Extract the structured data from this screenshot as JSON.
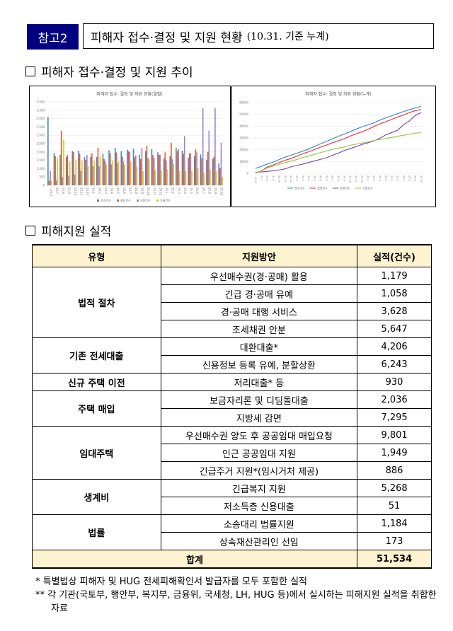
{
  "header": {
    "badge": "참고2",
    "title": "피해자 접수·결정 및 지원 현황",
    "title_sub": "(10.31. 기준 누계)"
  },
  "section1": {
    "title": "피해자 접수·결정 및 지원 추이"
  },
  "section2": {
    "title": "피해지원 실적"
  },
  "chart_data": [
    {
      "type": "bar",
      "title": "피해자 접수· 결정 및 지원 현황(월별)",
      "categories": [
        "~23.6",
        "23.7",
        "23.8",
        "23.9",
        "23.10",
        "23.11",
        "23.12",
        "24.1",
        "24.2",
        "24.3",
        "24.4",
        "24.5",
        "24.6",
        "24.7",
        "24.8",
        "24.9",
        "24.10",
        "24.11",
        "24.12",
        "25.1",
        "25.2",
        "25.3",
        "25.4",
        "25.5",
        "25.6",
        "25.7",
        "25.8",
        "25.9",
        "25.10"
      ],
      "ylim": [
        0,
        5000
      ],
      "yticks": [
        "0",
        "500",
        "1,000",
        "1,500",
        "2,000",
        "2,500",
        "3,000",
        "3,500",
        "4,000",
        "4,500",
        "5,000"
      ],
      "legend_position": "bottom",
      "series": [
        {
          "name": "접수건수",
          "color": "#4a86c8",
          "values": [
            4100,
            1920,
            1830,
            1700,
            2050,
            2080,
            1700,
            1700,
            1700,
            1900,
            2100,
            2250,
            2050,
            2130,
            2200,
            1830,
            2050,
            2170,
            1980,
            1600,
            1750,
            2250,
            2080,
            1650,
            1750,
            1850,
            1530,
            1570,
            1320
          ]
        },
        {
          "name": "결정건수",
          "color": "#f05a28",
          "values": [
            280,
            1750,
            3270,
            1830,
            2000,
            1900,
            1530,
            1920,
            2250,
            1580,
            1920,
            1970,
            1720,
            2050,
            1680,
            1580,
            2370,
            1830,
            1830,
            1970,
            2550,
            2050,
            1900,
            1920,
            2150,
            1630,
            2000,
            1700,
            1030
          ]
        },
        {
          "name": "지원건수",
          "color": "#9d88c0",
          "values": [
            850,
            300,
            480,
            570,
            650,
            870,
            1820,
            1150,
            1150,
            1430,
            1260,
            1330,
            1430,
            2000,
            1800,
            2250,
            1630,
            1640,
            1830,
            1480,
            1580,
            2170,
            2950,
            1920,
            1980,
            4620,
            3270,
            4630,
            2550
          ]
        },
        {
          "name": "가결건수",
          "color": "#e6c619",
          "values": [
            280,
            1640,
            2730,
            1420,
            1530,
            1500,
            1150,
            1480,
            1720,
            1230,
            1480,
            1460,
            1230,
            1420,
            1120,
            840,
            1560,
            920,
            900,
            950,
            1270,
            870,
            860,
            860,
            1030,
            760,
            950,
            860,
            500
          ]
        }
      ]
    },
    {
      "type": "line",
      "title": "피해자 접수· 결정 및 지원 현황(누계)",
      "cumulative_of": "monthly series above",
      "ylim": [
        0,
        60000
      ],
      "yticks": [
        "0",
        "10000",
        "20000",
        "30000",
        "40000",
        "50000",
        "60000"
      ],
      "legend_position": "bottom",
      "series": [
        {
          "name": "접수건수",
          "color": "#2e86d8"
        },
        {
          "name": "결정건수",
          "color": "#ff2020"
        },
        {
          "name": "지원건수",
          "color": "#7a3fb0"
        },
        {
          "name": "가결건수",
          "color": "#8ccc40"
        }
      ]
    }
  ],
  "table": {
    "headers": [
      "유형",
      "지원방안",
      "실적(건수)"
    ],
    "groups": [
      {
        "category": "법적 절차",
        "rows": [
          [
            "우선매수권(경·공매) 활용",
            "1,179"
          ],
          [
            "긴급 경·공매 유예",
            "1,058"
          ],
          [
            "경·공매 대행 서비스",
            "3,628"
          ],
          [
            "조세채권 안분",
            "5,647"
          ]
        ]
      },
      {
        "category": "기존 전세대출",
        "rows": [
          [
            "대환대출*",
            "4,206"
          ],
          [
            "신용정보 등록 유예, 분할상환",
            "6,243"
          ]
        ]
      },
      {
        "category": "신규 주택 이전",
        "rows": [
          [
            "저리대출* 등",
            "930"
          ]
        ]
      },
      {
        "category": "주택 매입",
        "rows": [
          [
            "보금자리론 및 디딤돌대출",
            "2,036"
          ],
          [
            "지방세 감면",
            "7,295"
          ]
        ]
      },
      {
        "category": "임대주택",
        "rows": [
          [
            "우선매수권 양도 후 공공임대 매입요청",
            "9,801"
          ],
          [
            "인근 공공임대 지원",
            "1,949"
          ],
          [
            "긴급주거 지원*(임시거처 제공)",
            "886"
          ]
        ]
      },
      {
        "category": "생계비",
        "rows": [
          [
            "긴급복지 지원",
            "5,268"
          ],
          [
            "저소득층 신용대출",
            "51"
          ]
        ]
      },
      {
        "category": "법률",
        "rows": [
          [
            "소송대리 법률지원",
            "1,184"
          ],
          [
            "상속재산관리인 선임",
            "173"
          ]
        ]
      }
    ],
    "total_label": "합계",
    "total_value": "51,534"
  },
  "notes": [
    "* 특별법상 피해자 및 HUG 전세피해확인서 발급자를 모두 포함한 실적",
    "** 각 기관(국토부, 행안부, 복지부, 금융위, 국세청, LH, HUG 등)에서 실시하는 피해지원 실적을 취합한 자료"
  ]
}
